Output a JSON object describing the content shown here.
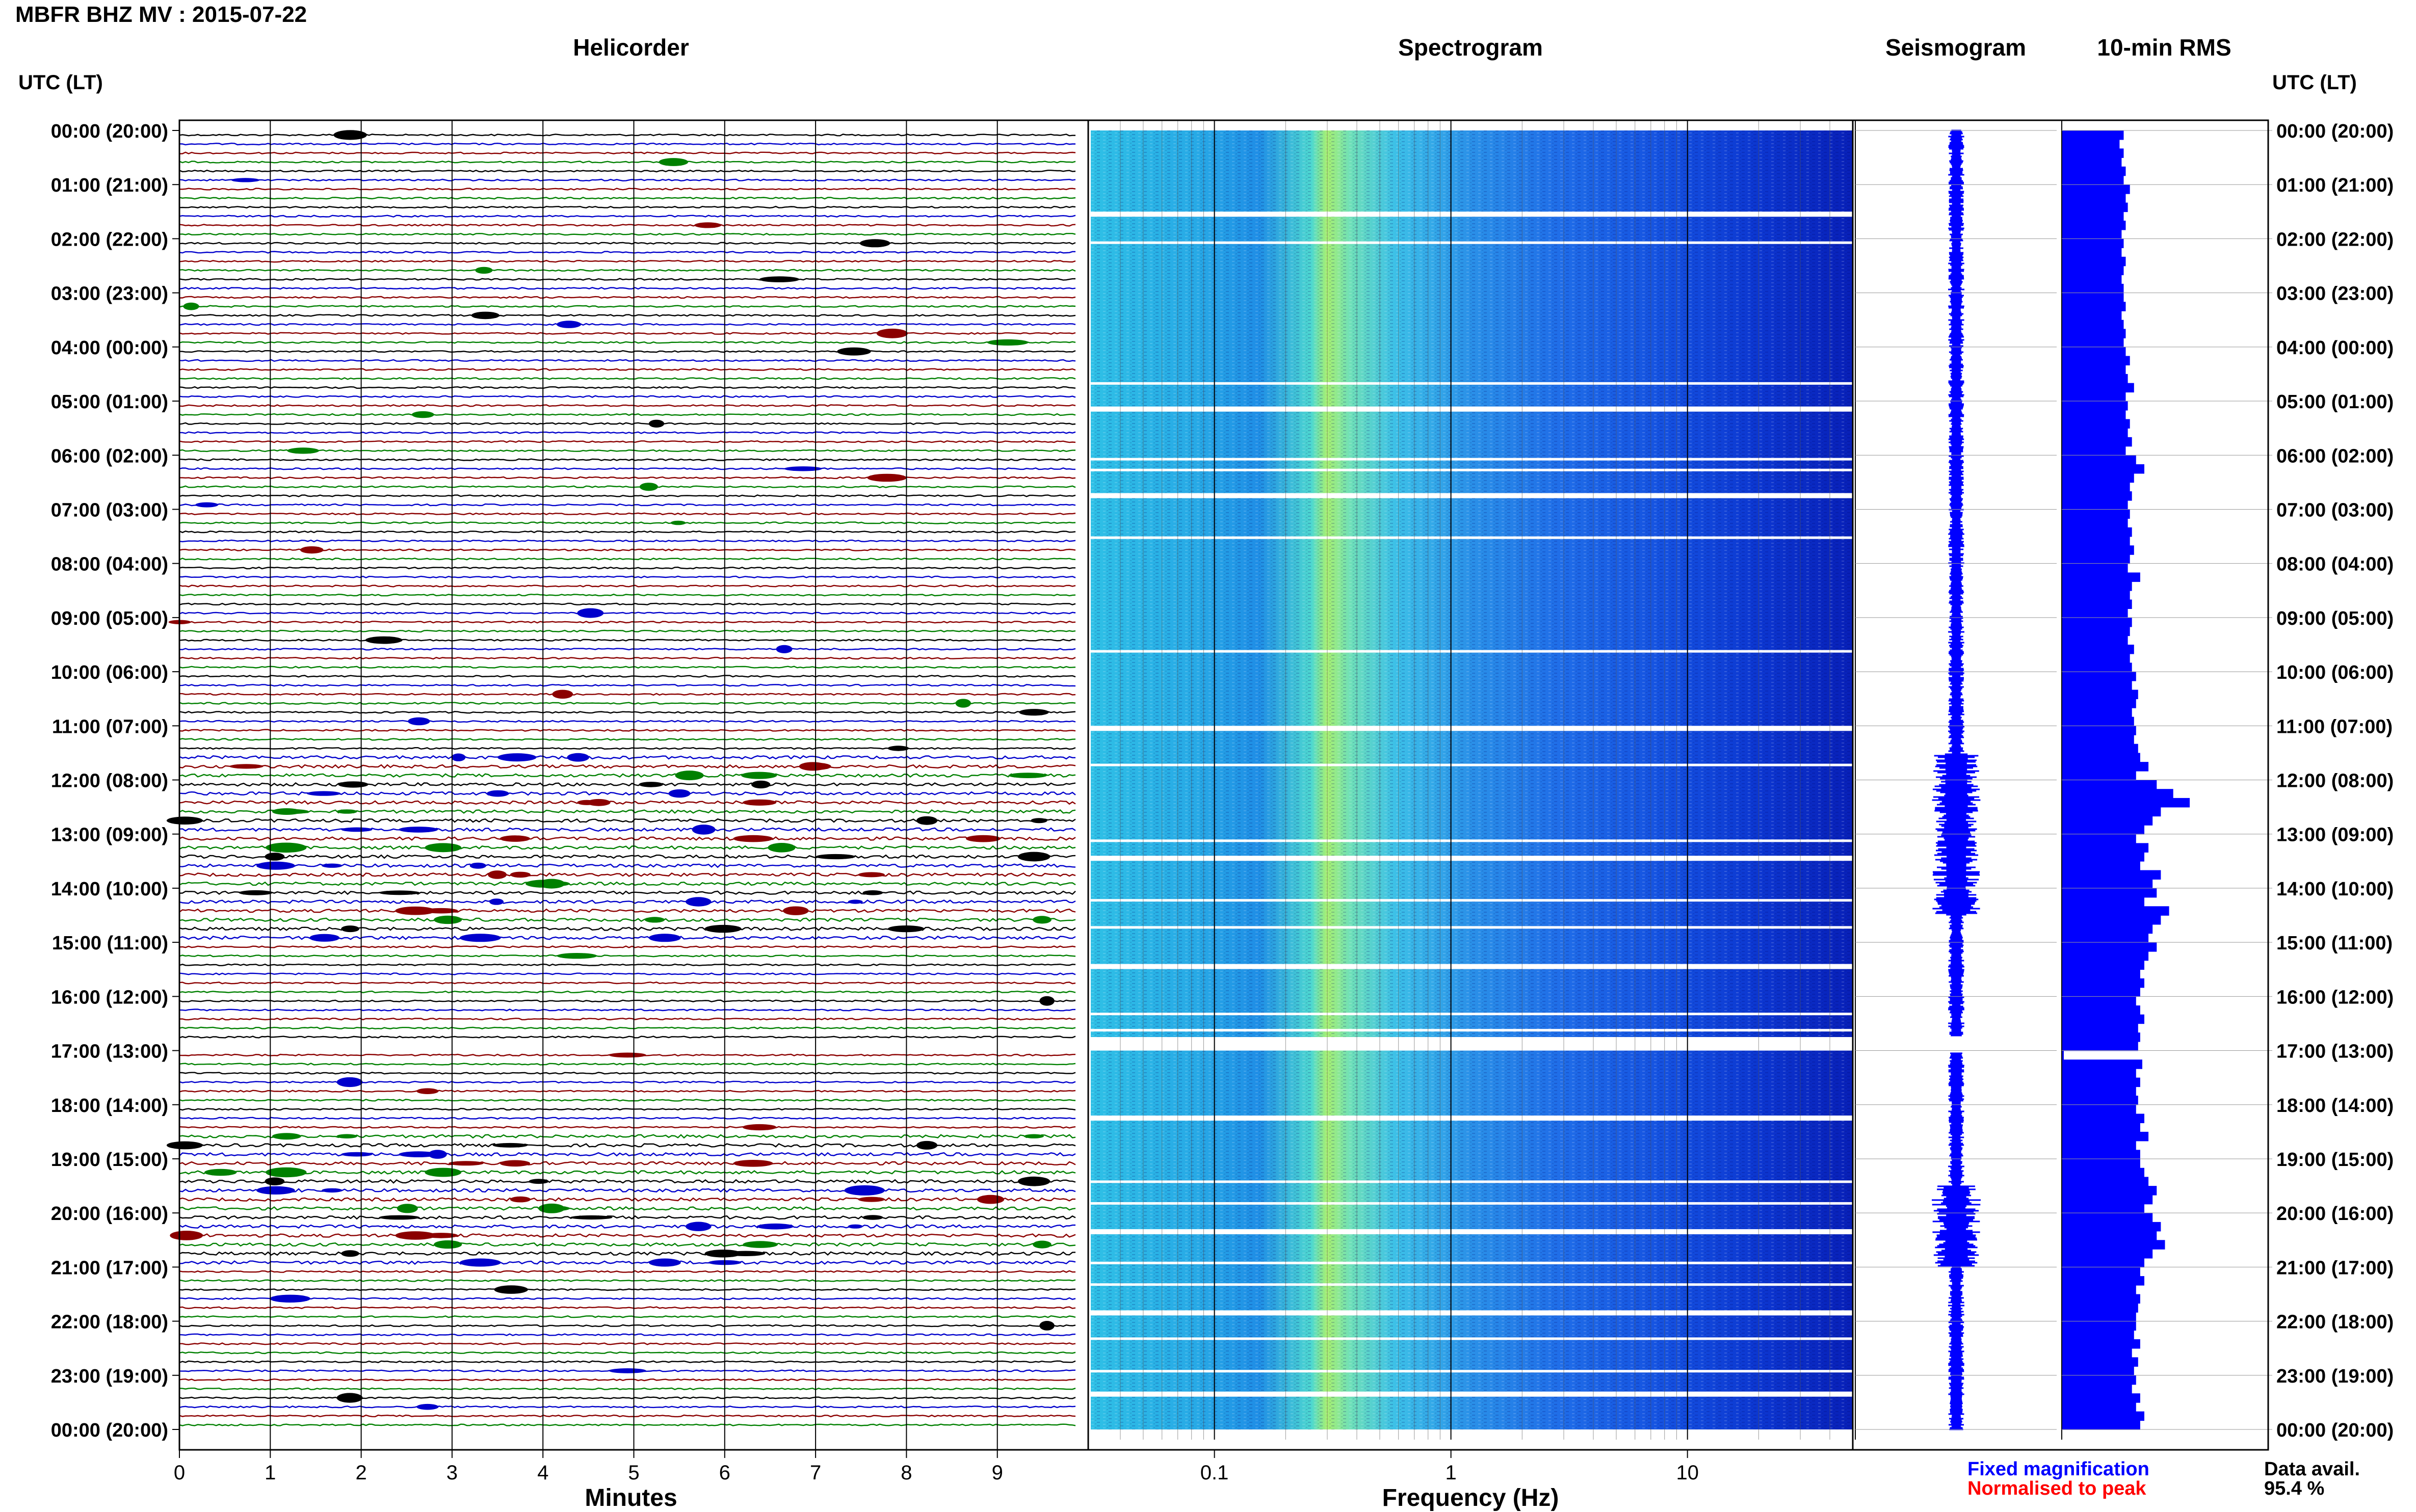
{
  "title": "MBFR BHZ MV : 2015-07-22",
  "panels": {
    "helicorder": "Helicorder",
    "spectrogram": "Spectrogram",
    "seismogram": "Seismogram",
    "rms": "10-min RMS"
  },
  "time_axis_label": "UTC (LT)",
  "time_labels": [
    "00:00 (20:00)",
    "01:00 (21:00)",
    "02:00 (22:00)",
    "03:00 (23:00)",
    "04:00 (00:00)",
    "05:00 (01:00)",
    "06:00 (02:00)",
    "07:00 (03:00)",
    "08:00 (04:00)",
    "09:00 (05:00)",
    "10:00 (06:00)",
    "11:00 (07:00)",
    "12:00 (08:00)",
    "13:00 (09:00)",
    "14:00 (10:00)",
    "15:00 (11:00)",
    "16:00 (12:00)",
    "17:00 (13:00)",
    "18:00 (14:00)",
    "19:00 (15:00)",
    "20:00 (16:00)",
    "21:00 (17:00)",
    "22:00 (18:00)",
    "23:00 (19:00)",
    "00:00 (20:00)"
  ],
  "minutes_axis": {
    "label": "Minutes",
    "ticks": [
      "0",
      "1",
      "2",
      "3",
      "4",
      "5",
      "6",
      "7",
      "8",
      "9"
    ]
  },
  "frequency_axis": {
    "label": "Frequency (Hz)",
    "ticks": [
      "0.1",
      "1",
      "10"
    ]
  },
  "legend": {
    "fixed": "Fixed magnification",
    "normalised": "Normalised to peak"
  },
  "availability": {
    "label": "Data avail.",
    "value": "95.4 %"
  },
  "colors": {
    "trace_cycle": [
      "#000000",
      "#0000cc",
      "#8b0000",
      "#008000"
    ],
    "seismogram": "#0000ff",
    "rms": "#0000ff"
  },
  "chart_data": {
    "type": "bar",
    "series_name": "10-min RMS",
    "ylim_hours": [
      0,
      24
    ],
    "gaps_hours": [
      [
        16.75,
        17.0
      ]
    ],
    "rms_values": [
      0.3,
      0.28,
      0.3,
      0.29,
      0.31,
      0.3,
      0.33,
      0.31,
      0.32,
      0.3,
      0.31,
      0.29,
      0.3,
      0.29,
      0.31,
      0.3,
      0.29,
      0.3,
      0.3,
      0.31,
      0.29,
      0.3,
      0.31,
      0.3,
      0.31,
      0.33,
      0.31,
      0.32,
      0.35,
      0.31,
      0.32,
      0.31,
      0.33,
      0.32,
      0.34,
      0.31,
      0.36,
      0.4,
      0.35,
      0.33,
      0.34,
      0.32,
      0.33,
      0.32,
      0.34,
      0.33,
      0.35,
      0.33,
      0.32,
      0.38,
      0.34,
      0.33,
      0.34,
      0.32,
      0.34,
      0.33,
      0.32,
      0.35,
      0.33,
      0.34,
      0.36,
      0.34,
      0.37,
      0.36,
      0.34,
      0.35,
      0.36,
      0.35,
      0.37,
      0.38,
      0.42,
      0.36,
      0.46,
      0.54,
      0.62,
      0.48,
      0.44,
      0.4,
      0.36,
      0.42,
      0.4,
      0.38,
      0.48,
      0.44,
      0.46,
      0.4,
      0.52,
      0.48,
      0.44,
      0.42,
      0.46,
      0.42,
      0.4,
      0.38,
      0.4,
      0.38,
      0.36,
      0.38,
      0.4,
      0.37,
      0.38,
      0.37,
      0.01,
      0.39,
      0.36,
      0.38,
      0.36,
      0.37,
      0.36,
      0.4,
      0.38,
      0.42,
      0.36,
      0.38,
      0.38,
      0.4,
      0.42,
      0.46,
      0.44,
      0.4,
      0.44,
      0.48,
      0.46,
      0.5,
      0.44,
      0.4,
      0.38,
      0.4,
      0.36,
      0.38,
      0.37,
      0.36,
      0.36,
      0.35,
      0.38,
      0.34,
      0.37,
      0.35,
      0.36,
      0.34,
      0.38,
      0.36,
      0.4,
      0.38
    ]
  }
}
